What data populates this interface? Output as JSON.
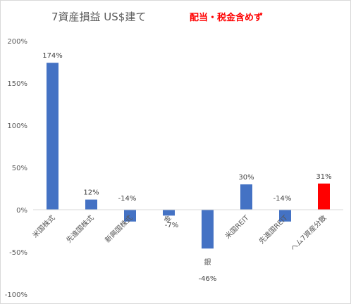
{
  "chart_data": {
    "type": "bar",
    "title": "7資産損益 US$建て",
    "subtitle": "配当・税金含めず",
    "categories": [
      "米国株式",
      "先進国株式",
      "新興国株式",
      "金",
      "銀",
      "米国REIT",
      "先進国REIT",
      "ヘム7資産分散"
    ],
    "values": [
      174,
      12,
      -14,
      -7,
      -46,
      30,
      -14,
      31
    ],
    "data_labels": [
      "174%",
      "12%",
      "-14%",
      "-7%",
      "-46%",
      "30%",
      "-14%",
      "31%"
    ],
    "bar_colors": [
      "#4472c4",
      "#4472c4",
      "#4472c4",
      "#4472c4",
      "#4472c4",
      "#4472c4",
      "#4472c4",
      "#ff0000"
    ],
    "ylim": [
      -100,
      200
    ],
    "yticks": [
      -100,
      -50,
      0,
      50,
      100,
      150,
      200
    ],
    "ytick_labels": [
      "-100%",
      "-50%",
      "0%",
      "50%",
      "100%",
      "150%",
      "200%"
    ],
    "xlabel": "",
    "ylabel": "",
    "grid": false,
    "legend": "none"
  }
}
